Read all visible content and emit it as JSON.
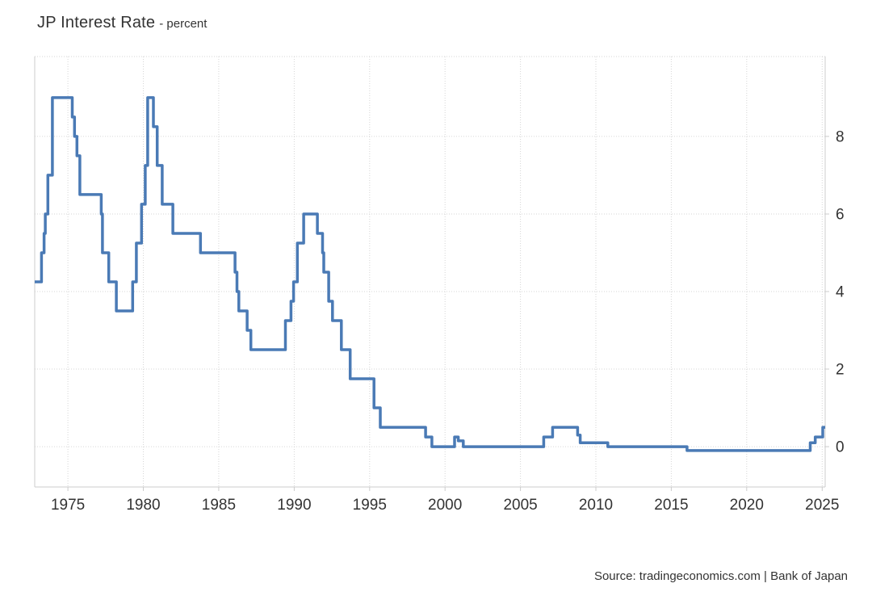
{
  "header": {
    "title": "JP Interest Rate",
    "subtitle": "- percent"
  },
  "footer": {
    "source": "Source: tradingeconomics.com | Bank of Japan"
  },
  "chart_data": {
    "type": "line",
    "step": true,
    "title": "JP Interest Rate",
    "ylabel": "percent",
    "xlabel": "",
    "grid": true,
    "legend": false,
    "xlim": [
      1972.8,
      2025.2
    ],
    "ylim": [
      -1.04,
      10.06
    ],
    "x_ticks": [
      1975,
      1980,
      1985,
      1990,
      1995,
      2000,
      2005,
      2010,
      2015,
      2020,
      2025
    ],
    "y_ticks": [
      0,
      2,
      4,
      6,
      8
    ],
    "line_color": "#4a7ab5",
    "grid_color": "#d6d6d6",
    "axis_color": "#cccccc",
    "label_color": "#333333",
    "series": [
      {
        "name": "JP Interest Rate",
        "points": [
          [
            1972.8,
            4.25
          ],
          [
            1973.25,
            5.0
          ],
          [
            1973.42,
            5.5
          ],
          [
            1973.5,
            6.0
          ],
          [
            1973.67,
            7.0
          ],
          [
            1973.97,
            9.0
          ],
          [
            1975.29,
            8.5
          ],
          [
            1975.44,
            8.0
          ],
          [
            1975.6,
            7.5
          ],
          [
            1975.79,
            6.5
          ],
          [
            1977.21,
            6.0
          ],
          [
            1977.29,
            5.0
          ],
          [
            1977.71,
            4.25
          ],
          [
            1978.21,
            3.5
          ],
          [
            1979.29,
            4.25
          ],
          [
            1979.54,
            5.25
          ],
          [
            1979.88,
            6.25
          ],
          [
            1980.13,
            7.25
          ],
          [
            1980.29,
            9.0
          ],
          [
            1980.67,
            8.25
          ],
          [
            1980.92,
            7.25
          ],
          [
            1981.25,
            6.25
          ],
          [
            1981.96,
            5.5
          ],
          [
            1983.79,
            5.0
          ],
          [
            1986.08,
            4.5
          ],
          [
            1986.21,
            4.0
          ],
          [
            1986.33,
            3.5
          ],
          [
            1986.88,
            3.0
          ],
          [
            1987.13,
            2.5
          ],
          [
            1989.42,
            3.25
          ],
          [
            1989.79,
            3.75
          ],
          [
            1989.96,
            4.25
          ],
          [
            1990.21,
            5.25
          ],
          [
            1990.63,
            6.0
          ],
          [
            1991.54,
            5.5
          ],
          [
            1991.88,
            5.0
          ],
          [
            1991.96,
            4.5
          ],
          [
            1992.29,
            3.75
          ],
          [
            1992.54,
            3.25
          ],
          [
            1993.13,
            2.5
          ],
          [
            1993.71,
            1.75
          ],
          [
            1995.29,
            1.0
          ],
          [
            1995.71,
            0.5
          ],
          [
            1998.71,
            0.25
          ],
          [
            1999.13,
            0.0
          ],
          [
            2000.63,
            0.25
          ],
          [
            2000.88,
            0.15
          ],
          [
            2001.21,
            0.0
          ],
          [
            2006.54,
            0.25
          ],
          [
            2007.13,
            0.5
          ],
          [
            2008.79,
            0.3
          ],
          [
            2008.96,
            0.1
          ],
          [
            2010.79,
            0.0
          ],
          [
            2016.04,
            -0.1
          ],
          [
            2024.21,
            0.1
          ],
          [
            2024.54,
            0.25
          ],
          [
            2025.04,
            0.5
          ]
        ]
      }
    ]
  }
}
